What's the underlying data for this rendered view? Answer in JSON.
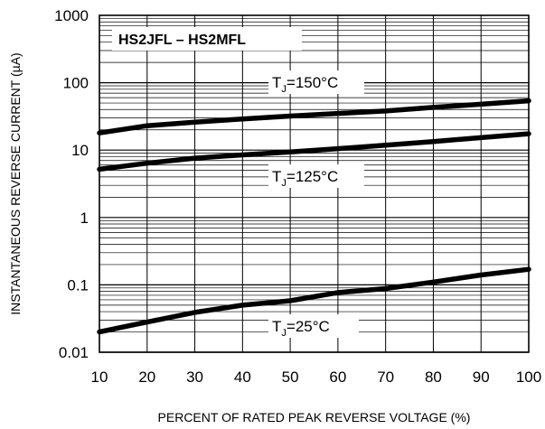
{
  "chart_data": {
    "type": "line",
    "title": "HS2JFL – HS2MFL",
    "xlabel": "PERCENT OF RATED PEAK REVERSE VOLTAGE (%)",
    "ylabel": "INSTANTANEOUS REVERSE CURRENT (µA)",
    "xlim": [
      10,
      100
    ],
    "ylim": [
      0.01,
      1000
    ],
    "yscale": "log",
    "grid": true,
    "x_ticks": [
      "10",
      "20",
      "30",
      "40",
      "50",
      "60",
      "70",
      "80",
      "90",
      "100"
    ],
    "y_ticks": [
      "0.01",
      "0.1",
      "1",
      "10",
      "100",
      "1000"
    ],
    "series": [
      {
        "name": "TJ=150°C",
        "x": [
          10,
          20,
          30,
          40,
          50,
          60,
          70,
          80,
          90,
          100
        ],
        "values": [
          18,
          23,
          26,
          29,
          32,
          35,
          38,
          43,
          48,
          54
        ]
      },
      {
        "name": "TJ=125°C",
        "x": [
          10,
          20,
          30,
          40,
          50,
          60,
          70,
          80,
          90,
          100
        ],
        "values": [
          5.2,
          6.4,
          7.6,
          8.5,
          9.4,
          10.5,
          11.8,
          13.4,
          15.3,
          17.5
        ]
      },
      {
        "name": "TJ=25°C",
        "x": [
          10,
          20,
          30,
          40,
          50,
          60,
          70,
          80,
          90,
          100
        ],
        "values": [
          0.02,
          0.028,
          0.039,
          0.05,
          0.058,
          0.077,
          0.088,
          0.11,
          0.14,
          0.17
        ]
      }
    ],
    "annotations": [
      {
        "series": 0,
        "main": "T",
        "sub": "J",
        "rest": "=150°C"
      },
      {
        "series": 1,
        "main": "T",
        "sub": "J",
        "rest": "=125°C"
      },
      {
        "series": 2,
        "main": "T",
        "sub": "J",
        "rest": "=25°C"
      }
    ]
  }
}
